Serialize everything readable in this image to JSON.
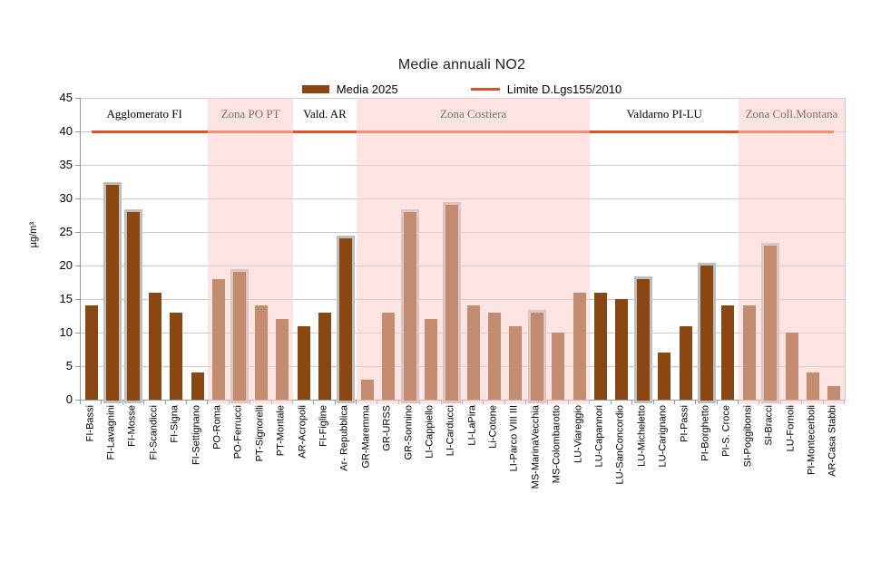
{
  "title": "Medie annuali NO2",
  "legend": {
    "series_label": "Media 2025",
    "limit_label": "Limite D.Lgs155/2010"
  },
  "colors": {
    "bar": "#8B4712",
    "bar_outline": "#BEBEBE",
    "limit_line": "#E0512B",
    "zone_overlay": "rgba(247,203,199,0.52)",
    "grid": "#CACACA",
    "axis": "#999999"
  },
  "chart_data": {
    "type": "bar",
    "title": "Medie annuali NO2",
    "xlabel": "",
    "ylabel": "µg/m³",
    "ylim": [
      0,
      45
    ],
    "ytick_step": 5,
    "grid": true,
    "legend_position": "top",
    "series_label": "Media 2025",
    "limit_label": "Limite D.Lgs155/2010",
    "limit_value": 40,
    "zones": [
      {
        "name": "Agglomerato FI",
        "stations": 6,
        "shaded": false
      },
      {
        "name": "Zona PO PT",
        "stations": 4,
        "shaded": true
      },
      {
        "name": "Vald. AR",
        "stations": 3,
        "shaded": false
      },
      {
        "name": "Zona Costiera",
        "stations": 11,
        "shaded": true
      },
      {
        "name": "Valdarno PI-LU",
        "stations": 7,
        "shaded": false
      },
      {
        "name": "Zona Coll.Montana",
        "stations": 5,
        "shaded": true
      }
    ],
    "categories": [
      "FI-Bassi",
      "FI-Lavagnini",
      "FI-Mosse",
      "FI-Scandicci",
      "FI-Signa",
      "FI-Settignano",
      "PO-Roma",
      "PO-Ferrucci",
      "PT-Signorelli",
      "PT-Montale",
      "AR-Acropoli",
      "FI-Figline",
      "Ar- Repubblica",
      "GR-Maremma",
      "GR-URSS",
      "GR-Sonnino",
      "LI-Cappiello",
      "LI-Carducci",
      "LI-LaPira",
      "Li-Cotone",
      "LI-Parco VIII III",
      "MS-MarinaVecchia",
      "MS-Colombarotto",
      "LU-Viareggio",
      "LU-Capannori",
      "LU-SanConcordio",
      "LU-Micheletto",
      "LU-Carignano",
      "PI-Passi",
      "PI-Borghetto",
      "PI-S. Croce",
      "SI-Poggibonsi",
      "SI-Bracci",
      "LU-Fornoli",
      "PI-Montecerboli",
      "AR-Casa Stabbi"
    ],
    "values": [
      14,
      32,
      28,
      16,
      13,
      4,
      18,
      19,
      14,
      12,
      11,
      13,
      24,
      3,
      13,
      28,
      12,
      29,
      14,
      13,
      11,
      13,
      10,
      16,
      16,
      15,
      18,
      7,
      11,
      20,
      14,
      14,
      23,
      10,
      4,
      2
    ],
    "outlined": [
      false,
      true,
      true,
      false,
      false,
      false,
      false,
      true,
      false,
      false,
      false,
      false,
      true,
      false,
      false,
      true,
      false,
      true,
      false,
      false,
      false,
      true,
      false,
      false,
      false,
      false,
      true,
      false,
      false,
      true,
      false,
      false,
      true,
      false,
      false,
      false
    ]
  }
}
